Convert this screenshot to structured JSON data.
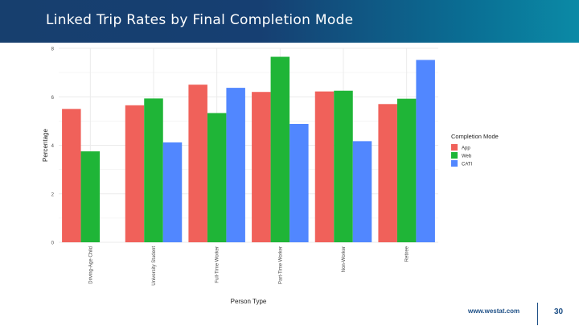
{
  "slide": {
    "title": "Linked Trip Rates by Final Completion Mode",
    "brand": "www.westat.com",
    "page_number": "30"
  },
  "chart_data": {
    "type": "bar",
    "xlabel": "Person Type",
    "ylabel": "Percentage",
    "ylim": [
      0,
      8
    ],
    "yticks": [
      0,
      2,
      4,
      6,
      8
    ],
    "grid": true,
    "legend_title": "Completion Mode",
    "legend_position": "right",
    "categories": [
      "Driving-Age Child",
      "University Student",
      "Full-Time Worker",
      "Part-Time Worker",
      "Non-Worker",
      "Retiree"
    ],
    "series": [
      {
        "name": "App",
        "color": "#f0615a",
        "values": [
          5.5,
          5.65,
          6.5,
          6.2,
          6.22,
          5.7
        ]
      },
      {
        "name": "Web",
        "color": "#1fb537",
        "values": [
          3.75,
          5.93,
          5.33,
          7.65,
          6.25,
          5.92
        ]
      },
      {
        "name": "CATI",
        "color": "#5187ff",
        "values": [
          null,
          4.12,
          6.37,
          4.88,
          4.17,
          7.52
        ]
      }
    ]
  }
}
